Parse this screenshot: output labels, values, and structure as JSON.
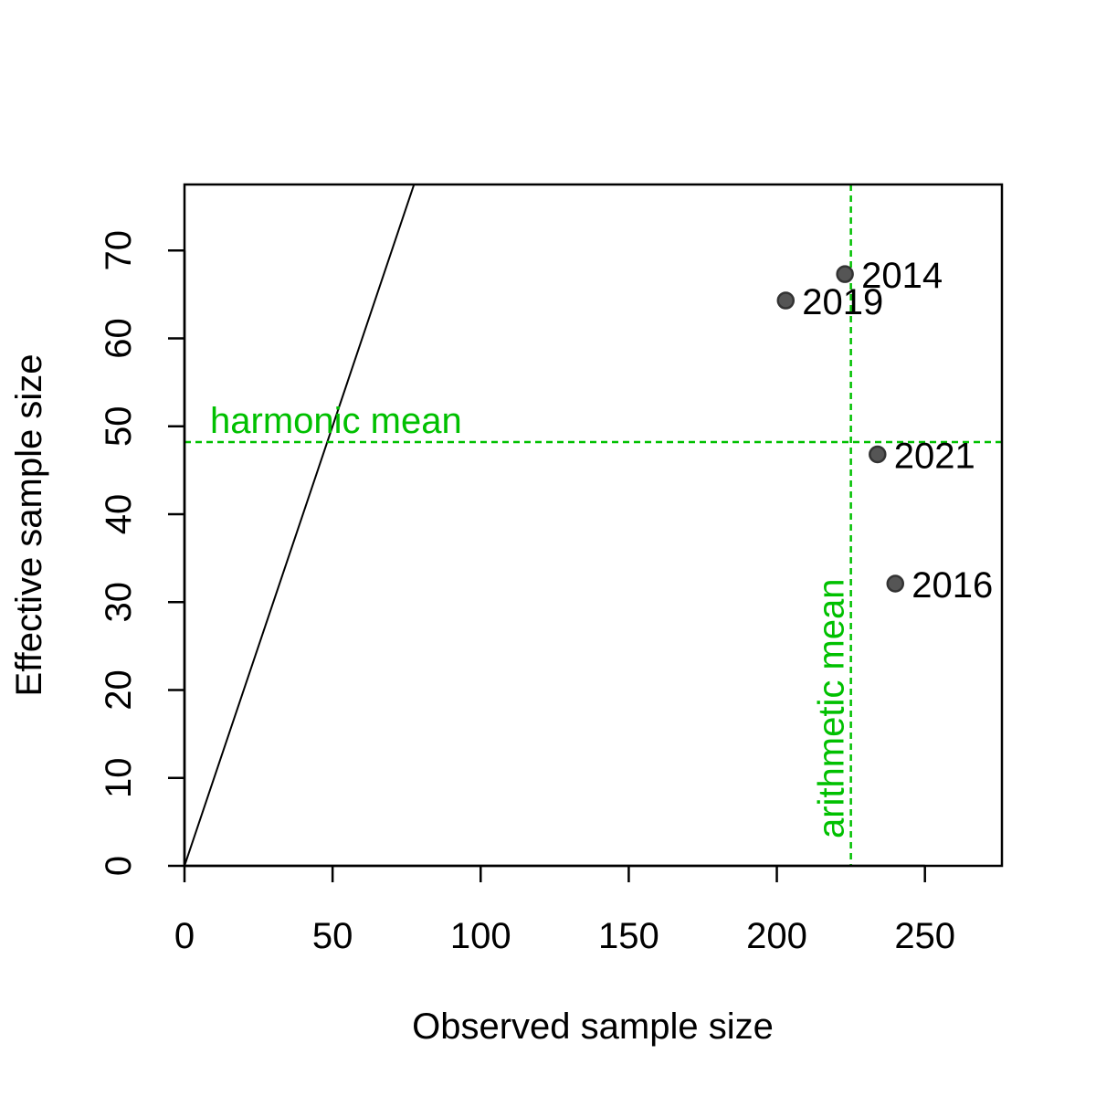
{
  "chart_data": {
    "type": "scatter",
    "xlabel": "Observed sample size",
    "ylabel": "Effective sample size",
    "xlim": [
      0,
      276
    ],
    "ylim": [
      0,
      77.5
    ],
    "x_ticks": [
      0,
      50,
      100,
      150,
      200,
      250
    ],
    "y_ticks": [
      0,
      10,
      20,
      30,
      40,
      50,
      60,
      70
    ],
    "grid": false,
    "points": [
      {
        "label": "2014",
        "x": 223,
        "y": 67.3
      },
      {
        "label": "2016",
        "x": 240,
        "y": 32.1
      },
      {
        "label": "2019",
        "x": 203,
        "y": 64.3
      },
      {
        "label": "2021",
        "x": 234,
        "y": 46.8
      }
    ],
    "identity_line": {
      "slope": 1,
      "intercept": 0
    },
    "reference_lines": {
      "harmonic_mean": {
        "label": "harmonic mean",
        "value": 48.2
      },
      "arithmetic_mean": {
        "label": "arithmetic mean",
        "value": 225
      }
    },
    "colors": {
      "reference": "#00c000",
      "point_fill": "#555555",
      "point_stroke": "#333333",
      "axis": "#000000"
    }
  }
}
